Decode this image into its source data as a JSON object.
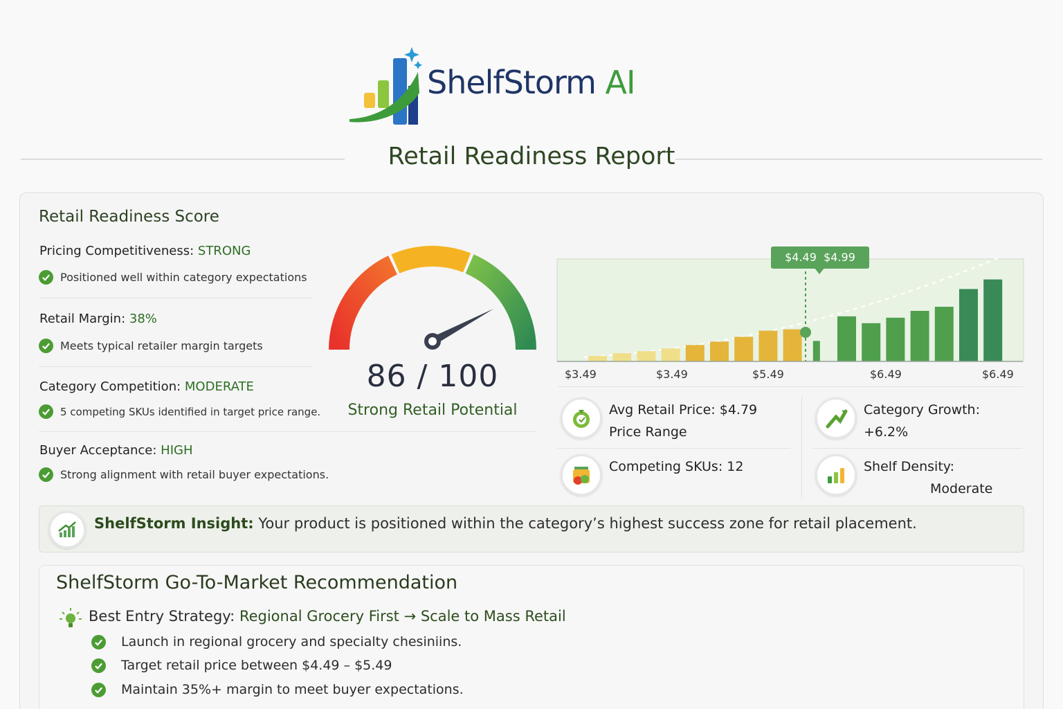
{
  "brand": {
    "name_main": "ShelfStorm",
    "name_accent": "AI",
    "logo": "chart-bars-logo"
  },
  "report": {
    "title": "Retail Readiness Report"
  },
  "score_section": {
    "heading": "Retail Readiness Score",
    "metrics": [
      {
        "label": "Pricing Competitiveness:",
        "value": "STRONG",
        "note": "Positioned well within category expectations"
      },
      {
        "label": "Retail Margin:",
        "value": "38%",
        "note": "Meets typical retailer margin targets"
      },
      {
        "label": "Category Competition:",
        "value": "MODERATE",
        "note": "5 competing SKUs identified in target price range."
      },
      {
        "label": "Buyer Acceptance:",
        "value": "HIGH",
        "note": "Strong alignment with retail buyer expectations."
      }
    ],
    "gauge": {
      "score_text": "86 / 100",
      "score": 86,
      "max": 100,
      "label": "Strong Retail Potential",
      "colors": [
        "#e8322b",
        "#f5b324",
        "#58a647",
        "#2f8a52"
      ]
    }
  },
  "price_chart": {
    "callout": "$4.49  $4.99",
    "x_labels": [
      "$3.49",
      "$3.49",
      "$5.49",
      "$6.49",
      "$6.49"
    ],
    "colors": {
      "low": "#f0df8a",
      "mid": "#e4b53a",
      "high": "#4f9f4d",
      "top": "#3a8a58",
      "band": "#e9f3e4"
    }
  },
  "chart_data": {
    "type": "bar",
    "title": "",
    "xlabel": "",
    "ylabel": "",
    "x_tick_labels": [
      "$3.49",
      "$3.49",
      "$5.49",
      "$6.49",
      "$6.49"
    ],
    "values": [
      8,
      12,
      15,
      19,
      24,
      29,
      36,
      45,
      47,
      30,
      66,
      56,
      64,
      74,
      80,
      106,
      120
    ],
    "highlight_range_label": "$4.49  $4.99",
    "highlight_index": 9
  },
  "stats": [
    {
      "icon": "price-tag-icon",
      "line1": "Avg Retail Price: $4.79",
      "line2": "Price Range"
    },
    {
      "icon": "growth-arrow-icon",
      "line1": "Category Growth:",
      "line2": "+6.2%"
    },
    {
      "icon": "shopping-basket-icon",
      "line1": "Competing SKUs: 12",
      "line2": ""
    },
    {
      "icon": "bar-chart-icon",
      "line1": "Shelf Density:",
      "line2": "Moderate"
    }
  ],
  "insight": {
    "label": "ShelfStorm Insight:",
    "text": " Your product is positioned within the category’s highest success zone for retail placement."
  },
  "gtm": {
    "title": "ShelfStorm Go-To-Market Recommendation",
    "strategy_label": "Best Entry Strategy:",
    "strategy_value": " Regional Grocery First → Scale to Mass Retail",
    "items": [
      "Launch in regional grocery and specialty chesiniins.",
      "Target retail price between $4.49 – $5.49",
      "Maintain 35%+ margin to meet buyer expectations."
    ]
  }
}
